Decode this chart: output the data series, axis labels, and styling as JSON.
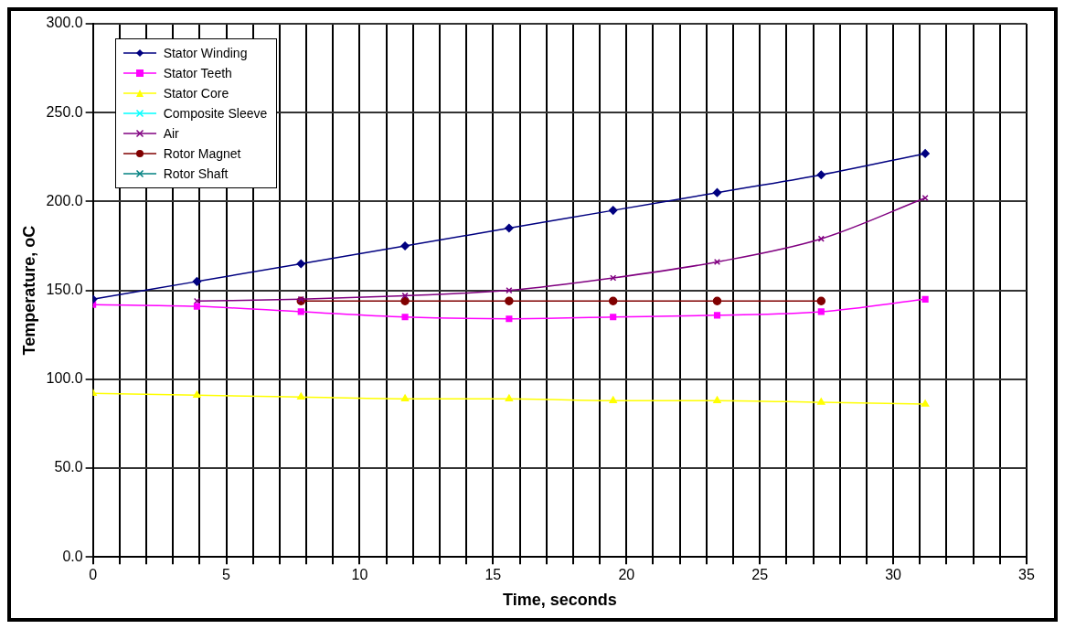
{
  "chart_data": {
    "type": "line",
    "xlabel": "Time, seconds",
    "ylabel": "Temperature, oC",
    "x": [
      0,
      3.9,
      7.8,
      11.7,
      15.6,
      19.5,
      23.4,
      27.3,
      31.2
    ],
    "series": [
      {
        "name": "Stator Winding",
        "color": "#000080",
        "marker": "diamond",
        "values": [
          145,
          155,
          165,
          175,
          185,
          195,
          205,
          215,
          227
        ]
      },
      {
        "name": "Stator Teeth",
        "color": "#ff00ff",
        "marker": "square",
        "values": [
          142,
          141,
          138,
          135,
          134,
          135,
          136,
          138,
          145
        ]
      },
      {
        "name": "Stator Core",
        "color": "#ffff00",
        "marker": "triangle",
        "values": [
          92,
          91,
          90,
          89,
          89,
          88,
          88,
          87,
          86
        ]
      },
      {
        "name": "Composite Sleeve",
        "color": "#00ffff",
        "marker": "cross",
        "values": [
          null,
          null,
          null,
          null,
          null,
          null,
          null,
          null,
          null
        ]
      },
      {
        "name": "Air",
        "color": "#800080",
        "marker": "cross",
        "values": [
          null,
          144,
          145,
          147,
          150,
          157,
          166,
          179,
          202
        ]
      },
      {
        "name": "Rotor Magnet",
        "color": "#800000",
        "marker": "circle",
        "values": [
          null,
          null,
          144,
          144,
          144,
          144,
          144,
          144,
          null
        ]
      },
      {
        "name": "Rotor Shaft",
        "color": "#008080",
        "marker": "cross",
        "values": [
          null,
          null,
          null,
          null,
          null,
          null,
          null,
          null,
          null
        ]
      }
    ],
    "xlim": [
      0,
      35
    ],
    "ylim": [
      0,
      300
    ],
    "xticks": [
      0,
      {
        "value": 1,
        "label": null
      },
      {
        "value": 2,
        "label": null
      },
      {
        "value": 3,
        "label": null
      },
      {
        "value": 4,
        "label": null
      },
      5,
      {
        "value": 6,
        "label": null
      },
      {
        "value": 7,
        "label": null
      },
      {
        "value": 8,
        "label": null
      },
      {
        "value": 9,
        "label": null
      },
      10,
      {
        "value": 11,
        "label": null
      },
      {
        "value": 12,
        "label": null
      },
      {
        "value": 13,
        "label": null
      },
      {
        "value": 14,
        "label": null
      },
      15,
      {
        "value": 16,
        "label": null
      },
      {
        "value": 17,
        "label": null
      },
      {
        "value": 18,
        "label": null
      },
      {
        "value": 19,
        "label": null
      },
      20,
      {
        "value": 21,
        "label": null
      },
      {
        "value": 22,
        "label": null
      },
      {
        "value": 23,
        "label": null
      },
      {
        "value": 24,
        "label": null
      },
      25,
      {
        "value": 26,
        "label": null
      },
      {
        "value": 27,
        "label": null
      },
      {
        "value": 28,
        "label": null
      },
      {
        "value": 29,
        "label": null
      },
      30,
      {
        "value": 31,
        "label": null
      },
      {
        "value": 32,
        "label": null
      },
      {
        "value": 33,
        "label": null
      },
      {
        "value": 34,
        "label": null
      },
      35
    ],
    "yticks": [
      {
        "value": 0,
        "label": "0.0"
      },
      {
        "value": 50,
        "label": "50.0"
      },
      {
        "value": 100,
        "label": "100.0"
      },
      {
        "value": 150,
        "label": "150.0"
      },
      {
        "value": 200,
        "label": "200.0"
      },
      {
        "value": 250,
        "label": "250.0"
      },
      {
        "value": 300,
        "label": "300.0"
      }
    ],
    "grid": true,
    "legend": "top left"
  }
}
